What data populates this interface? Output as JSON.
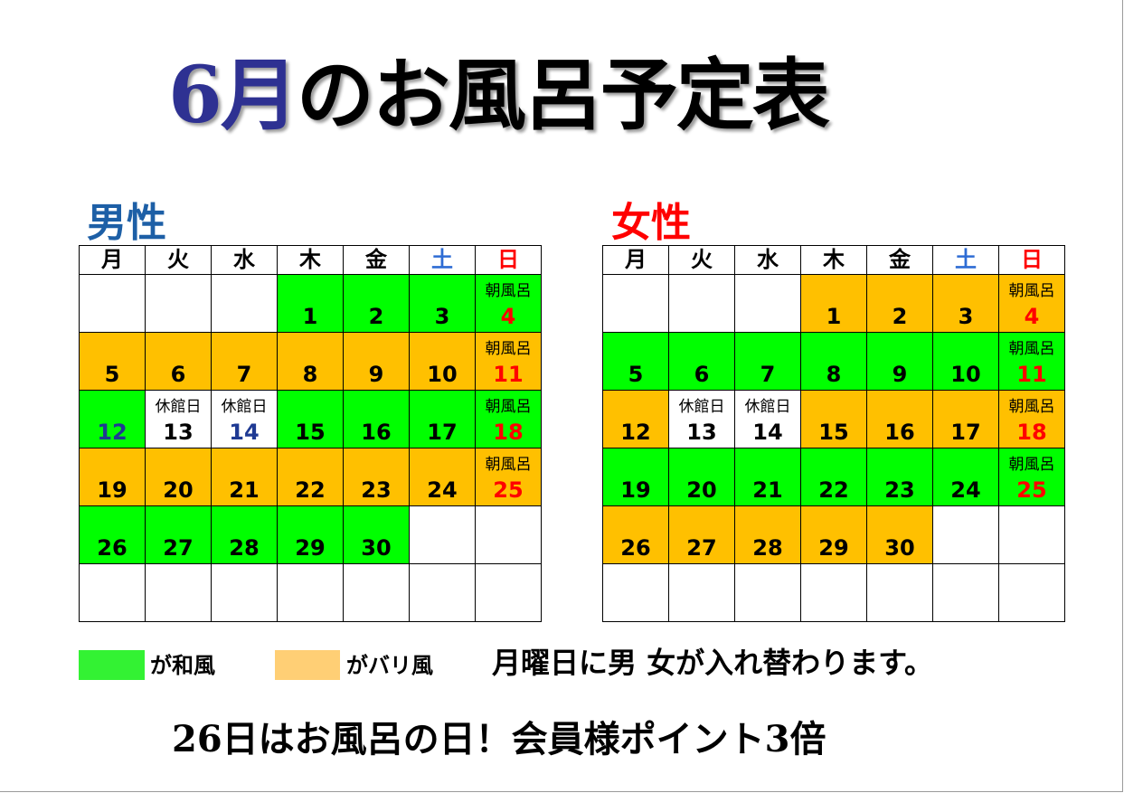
{
  "title": {
    "month": "6月",
    "rest": "のお風呂予定表"
  },
  "calendars": {
    "weekdays": [
      "月",
      "火",
      "水",
      "木",
      "金",
      "土",
      "日"
    ],
    "men": {
      "label": "男性",
      "weeks": [
        [
          {
            "day": "",
            "color": "white"
          },
          {
            "day": "",
            "color": "white"
          },
          {
            "day": "",
            "color": "white"
          },
          {
            "day": "1",
            "color": "green"
          },
          {
            "day": "2",
            "color": "green"
          },
          {
            "day": "3",
            "color": "green"
          },
          {
            "day": "4",
            "color": "green",
            "note": "朝風呂"
          }
        ],
        [
          {
            "day": "5",
            "color": "orange"
          },
          {
            "day": "6",
            "color": "orange"
          },
          {
            "day": "7",
            "color": "orange"
          },
          {
            "day": "8",
            "color": "orange"
          },
          {
            "day": "9",
            "color": "orange"
          },
          {
            "day": "10",
            "color": "orange"
          },
          {
            "day": "11",
            "color": "orange",
            "note": "朝風呂"
          }
        ],
        [
          {
            "day": "12",
            "color": "green"
          },
          {
            "day": "13",
            "color": "white",
            "note": "休館日"
          },
          {
            "day": "14",
            "color": "white",
            "note": "休館日"
          },
          {
            "day": "15",
            "color": "green"
          },
          {
            "day": "16",
            "color": "green"
          },
          {
            "day": "17",
            "color": "green"
          },
          {
            "day": "18",
            "color": "green",
            "note": "朝風呂"
          }
        ],
        [
          {
            "day": "19",
            "color": "orange"
          },
          {
            "day": "20",
            "color": "orange"
          },
          {
            "day": "21",
            "color": "orange"
          },
          {
            "day": "22",
            "color": "orange"
          },
          {
            "day": "23",
            "color": "orange"
          },
          {
            "day": "24",
            "color": "orange"
          },
          {
            "day": "25",
            "color": "orange",
            "note": "朝風呂"
          }
        ],
        [
          {
            "day": "26",
            "color": "green"
          },
          {
            "day": "27",
            "color": "green"
          },
          {
            "day": "28",
            "color": "green"
          },
          {
            "day": "29",
            "color": "green"
          },
          {
            "day": "30",
            "color": "green"
          },
          {
            "day": "",
            "color": "white"
          },
          {
            "day": "",
            "color": "white"
          }
        ],
        [
          {
            "day": "",
            "color": "white"
          },
          {
            "day": "",
            "color": "white"
          },
          {
            "day": "",
            "color": "white"
          },
          {
            "day": "",
            "color": "white"
          },
          {
            "day": "",
            "color": "white"
          },
          {
            "day": "",
            "color": "white"
          },
          {
            "day": "",
            "color": "white"
          }
        ]
      ]
    },
    "women": {
      "label": "女性",
      "weeks": [
        [
          {
            "day": "",
            "color": "white"
          },
          {
            "day": "",
            "color": "white"
          },
          {
            "day": "",
            "color": "white"
          },
          {
            "day": "1",
            "color": "orange"
          },
          {
            "day": "2",
            "color": "orange"
          },
          {
            "day": "3",
            "color": "orange"
          },
          {
            "day": "4",
            "color": "orange",
            "note": "朝風呂"
          }
        ],
        [
          {
            "day": "5",
            "color": "green"
          },
          {
            "day": "6",
            "color": "green"
          },
          {
            "day": "7",
            "color": "green"
          },
          {
            "day": "8",
            "color": "green"
          },
          {
            "day": "9",
            "color": "green"
          },
          {
            "day": "10",
            "color": "green"
          },
          {
            "day": "11",
            "color": "green",
            "note": "朝風呂"
          }
        ],
        [
          {
            "day": "12",
            "color": "orange"
          },
          {
            "day": "13",
            "color": "white",
            "note": "休館日"
          },
          {
            "day": "14",
            "color": "white",
            "note": "休館日"
          },
          {
            "day": "15",
            "color": "orange"
          },
          {
            "day": "16",
            "color": "orange"
          },
          {
            "day": "17",
            "color": "orange"
          },
          {
            "day": "18",
            "color": "orange",
            "note": "朝風呂"
          }
        ],
        [
          {
            "day": "19",
            "color": "green"
          },
          {
            "day": "20",
            "color": "green"
          },
          {
            "day": "21",
            "color": "green"
          },
          {
            "day": "22",
            "color": "green"
          },
          {
            "day": "23",
            "color": "green"
          },
          {
            "day": "24",
            "color": "green"
          },
          {
            "day": "25",
            "color": "green",
            "note": "朝風呂"
          }
        ],
        [
          {
            "day": "26",
            "color": "orange"
          },
          {
            "day": "27",
            "color": "orange"
          },
          {
            "day": "28",
            "color": "orange"
          },
          {
            "day": "29",
            "color": "orange"
          },
          {
            "day": "30",
            "color": "orange"
          },
          {
            "day": "",
            "color": "white"
          },
          {
            "day": "",
            "color": "white"
          }
        ],
        [
          {
            "day": "",
            "color": "white"
          },
          {
            "day": "",
            "color": "white"
          },
          {
            "day": "",
            "color": "white"
          },
          {
            "day": "",
            "color": "white"
          },
          {
            "day": "",
            "color": "white"
          },
          {
            "day": "",
            "color": "white"
          },
          {
            "day": "",
            "color": "white"
          }
        ]
      ]
    }
  },
  "colors": {
    "green": "#00ff00",
    "orange": "#ffc000",
    "saturday": "#2e6cd4",
    "sunday": "#ff0000"
  },
  "legend": {
    "green_label": "が和風",
    "orange_label": "がバリ風"
  },
  "swap_note": "月曜日に男 女が入れ替わります。",
  "bottom_note": "26日はお風呂の日！会員様ポイント3倍"
}
